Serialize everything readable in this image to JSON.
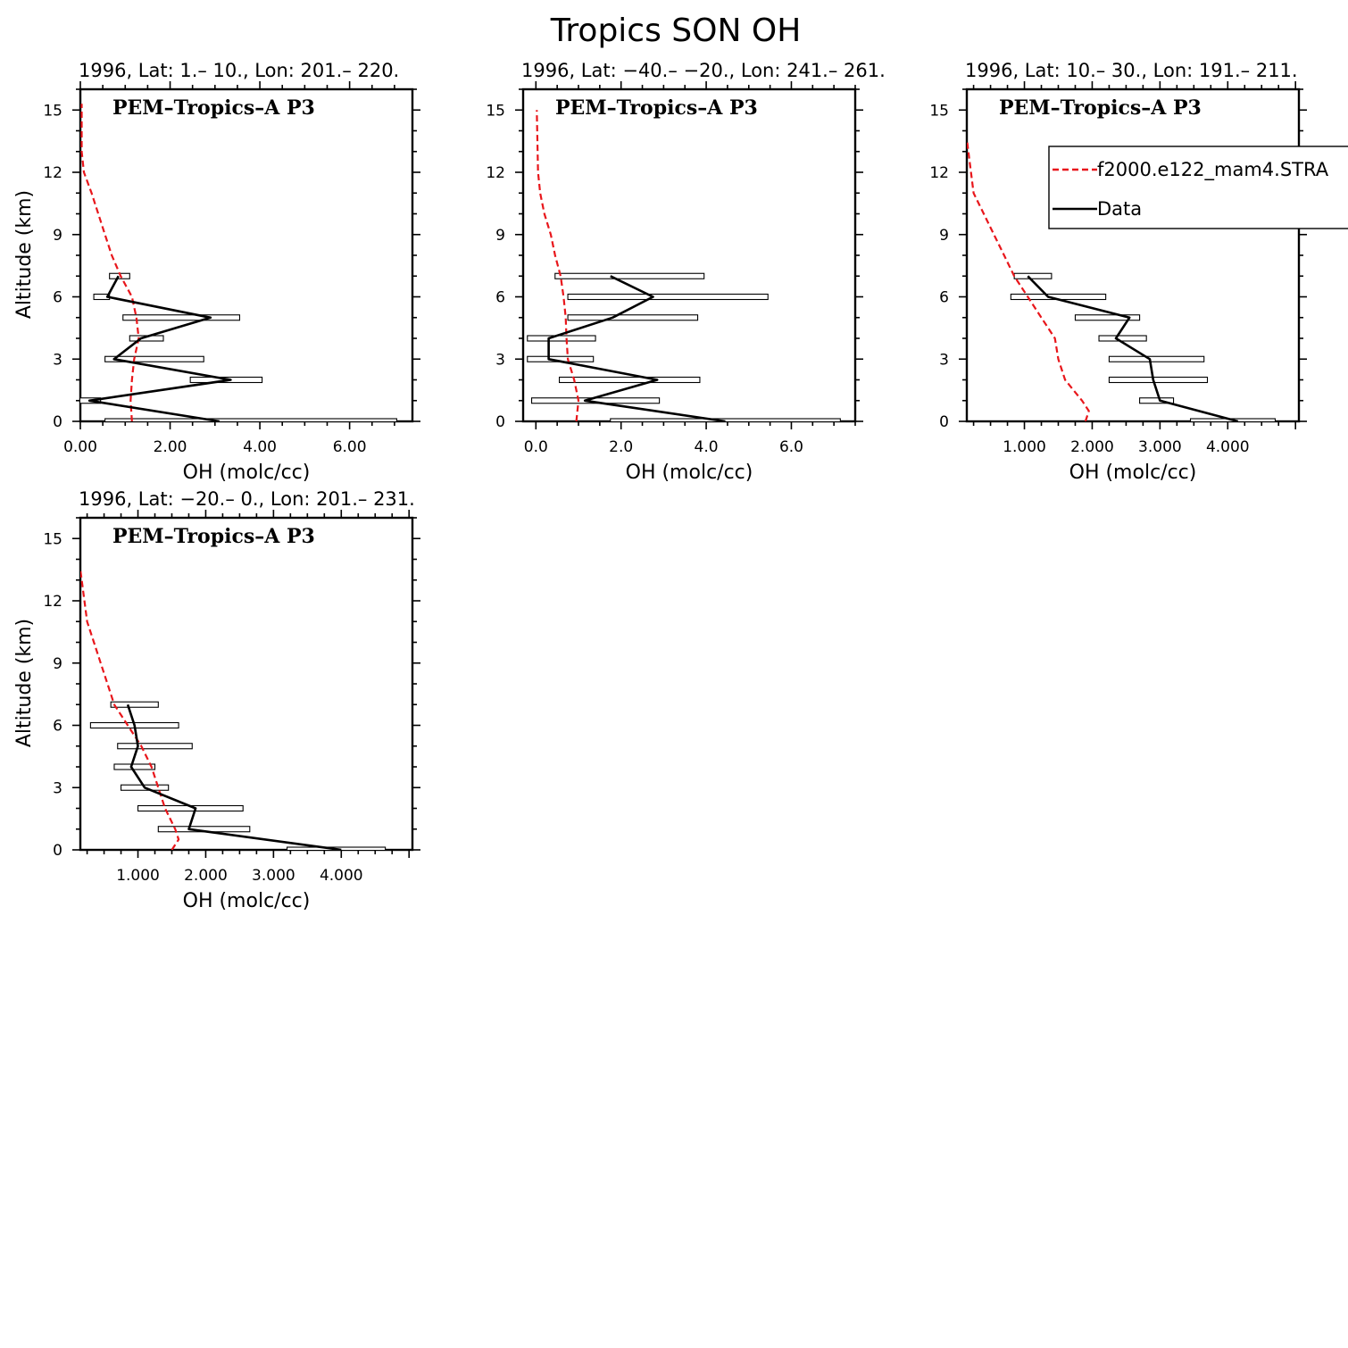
{
  "figure_title": "Tropics SON OH",
  "chart_data": [
    {
      "type": "line",
      "title": "1996, Lat: 1.– 10., Lon: 201.– 220.",
      "annotation": "PEM–Tropics–A P3",
      "xlabel": "OH (molc/cc)",
      "ylabel": "Altitude (km)",
      "xlim": [
        0,
        7.4
      ],
      "ylim": [
        0,
        16
      ],
      "xticks": [
        0,
        2,
        4,
        6
      ],
      "xticklabels": [
        "0.00",
        "2.00",
        "4.00",
        "6.00"
      ],
      "yticks": [
        0,
        3,
        6,
        9,
        12,
        15
      ],
      "yticklabels": [
        "0",
        "3",
        "6",
        "9",
        "12",
        "15"
      ],
      "series": [
        {
          "name": "f2000.e122_mam4.STRA",
          "style": "dashed",
          "color": "#e8161b",
          "x": [
            1.15,
            1.12,
            1.15,
            1.2,
            1.3,
            1.25,
            1.15,
            0.9,
            0.7,
            0.55,
            0.4,
            0.25,
            0.08,
            0.03,
            0.03
          ],
          "y": [
            0,
            1,
            2,
            3,
            4,
            5,
            6,
            7,
            8,
            9,
            10,
            11,
            12,
            13,
            15.3
          ]
        },
        {
          "name": "Data",
          "style": "solid",
          "color": "#000000",
          "x": [
            3.1,
            0.2,
            3.35,
            0.75,
            1.35,
            2.9,
            0.6,
            0.85
          ],
          "y": [
            0,
            1,
            2,
            3,
            4,
            5,
            6,
            7
          ],
          "xerr_low": [
            0.55,
            -0.1,
            2.45,
            0.55,
            1.1,
            0.95,
            0.3,
            0.65
          ],
          "xerr_high": [
            7.05,
            0.45,
            4.05,
            2.75,
            1.85,
            3.55,
            0.65,
            1.1
          ]
        }
      ]
    },
    {
      "type": "line",
      "title": "1996, Lat: −40.– −20., Lon: 241.– 261.",
      "annotation": "PEM–Tropics–A P3",
      "xlabel": "OH (molc/cc)",
      "ylabel": "",
      "xlim": [
        -0.3,
        7.5
      ],
      "ylim": [
        0,
        16
      ],
      "xticks": [
        0,
        2,
        4,
        6
      ],
      "xticklabels": [
        "0.0",
        "2.0",
        "4.0",
        "6.0"
      ],
      "yticks": [
        0,
        3,
        6,
        9,
        12,
        15
      ],
      "yticklabels": [
        "0",
        "3",
        "6",
        "9",
        "12",
        "15"
      ],
      "series": [
        {
          "name": "f2000.e122_mam4.STRA",
          "style": "dashed",
          "color": "#e8161b",
          "x": [
            0.95,
            1.0,
            0.9,
            0.75,
            0.72,
            0.7,
            0.65,
            0.58,
            0.45,
            0.35,
            0.2,
            0.1,
            0.05,
            0.02
          ],
          "y": [
            0,
            1,
            2,
            3,
            4,
            5,
            6,
            7,
            8,
            9,
            10,
            11,
            12,
            15
          ]
        },
        {
          "name": "Data",
          "style": "solid",
          "color": "#000000",
          "x": [
            4.45,
            1.15,
            2.85,
            0.3,
            0.3,
            1.8,
            2.75,
            1.75
          ],
          "y": [
            0,
            1,
            2,
            3,
            4,
            5,
            6,
            7
          ],
          "xerr_low": [
            1.75,
            -0.1,
            0.55,
            -0.2,
            -0.2,
            0.75,
            0.75,
            0.45
          ],
          "xerr_high": [
            7.15,
            2.9,
            3.85,
            1.35,
            1.4,
            3.8,
            5.45,
            3.95
          ]
        }
      ]
    },
    {
      "type": "line",
      "title": "1996, Lat: 10.– 30., Lon: 191.– 211.",
      "annotation": "PEM–Tropics–A P3",
      "xlabel": "OH (molc/cc)",
      "ylabel": "",
      "xlim": [
        0.15,
        5.05
      ],
      "ylim": [
        0,
        16
      ],
      "xticks": [
        1,
        2,
        3,
        4
      ],
      "xticklabels": [
        "1.000",
        "2.000",
        "3.000",
        "4.000"
      ],
      "yticks": [
        0,
        3,
        6,
        9,
        12,
        15
      ],
      "yticklabels": [
        "0",
        "3",
        "6",
        "9",
        "12",
        "15"
      ],
      "legend": {
        "placement": "top-right",
        "entries": [
          {
            "label": "f2000.e122_mam4.STRA",
            "style": "dashed",
            "color": "#e8161b"
          },
          {
            "label": "Data",
            "style": "solid",
            "color": "#000000"
          }
        ]
      },
      "series": [
        {
          "name": "f2000.e122_mam4.STRA",
          "style": "dashed",
          "color": "#e8161b",
          "x": [
            1.9,
            1.95,
            1.85,
            1.6,
            1.5,
            1.45,
            1.25,
            1.05,
            0.85,
            0.7,
            0.55,
            0.4,
            0.25,
            0.15
          ],
          "y": [
            0,
            0.5,
            1,
            2,
            3,
            4,
            5,
            6,
            7,
            8,
            9,
            10,
            11,
            13.6
          ]
        },
        {
          "name": "Data",
          "style": "solid",
          "color": "#000000",
          "x": [
            4.15,
            3.0,
            2.9,
            2.85,
            2.35,
            2.55,
            1.35,
            1.05
          ],
          "y": [
            0,
            1,
            2,
            3,
            4,
            5,
            6,
            7
          ],
          "xerr_low": [
            3.45,
            2.7,
            2.25,
            2.25,
            2.1,
            1.75,
            0.8,
            0.85
          ],
          "xerr_high": [
            4.7,
            3.2,
            3.7,
            3.65,
            2.8,
            2.7,
            2.2,
            1.4
          ]
        }
      ]
    },
    {
      "type": "line",
      "title": "1996, Lat: −20.– 0., Lon: 201.– 231.",
      "annotation": "PEM–Tropics–A P3",
      "xlabel": "OH (molc/cc)",
      "ylabel": "Altitude (km)",
      "xlim": [
        0.15,
        5.05
      ],
      "ylim": [
        0,
        16
      ],
      "xticks": [
        1,
        2,
        3,
        4
      ],
      "xticklabels": [
        "1.000",
        "2.000",
        "3.000",
        "4.000"
      ],
      "yticks": [
        0,
        3,
        6,
        9,
        12,
        15
      ],
      "yticklabels": [
        "0",
        "3",
        "6",
        "9",
        "12",
        "15"
      ],
      "series": [
        {
          "name": "f2000.e122_mam4.STRA",
          "style": "dashed",
          "color": "#e8161b",
          "x": [
            1.5,
            1.6,
            1.55,
            1.4,
            1.3,
            1.2,
            1.05,
            0.85,
            0.65,
            0.55,
            0.45,
            0.35,
            0.25,
            0.15
          ],
          "y": [
            0,
            0.5,
            1,
            2,
            3,
            4,
            5,
            6,
            7,
            8,
            9,
            10,
            11,
            13.5
          ]
        },
        {
          "name": "Data",
          "style": "solid",
          "color": "#000000",
          "x": [
            4.0,
            1.75,
            1.85,
            1.1,
            0.9,
            1.0,
            0.95,
            0.85
          ],
          "y": [
            0,
            1,
            2,
            3,
            4,
            5,
            6,
            7
          ],
          "xerr_low": [
            3.2,
            1.3,
            1.0,
            0.75,
            0.65,
            0.7,
            0.3,
            0.6
          ],
          "xerr_high": [
            4.65,
            2.65,
            2.55,
            1.45,
            1.25,
            1.8,
            1.6,
            1.3
          ]
        }
      ]
    }
  ]
}
